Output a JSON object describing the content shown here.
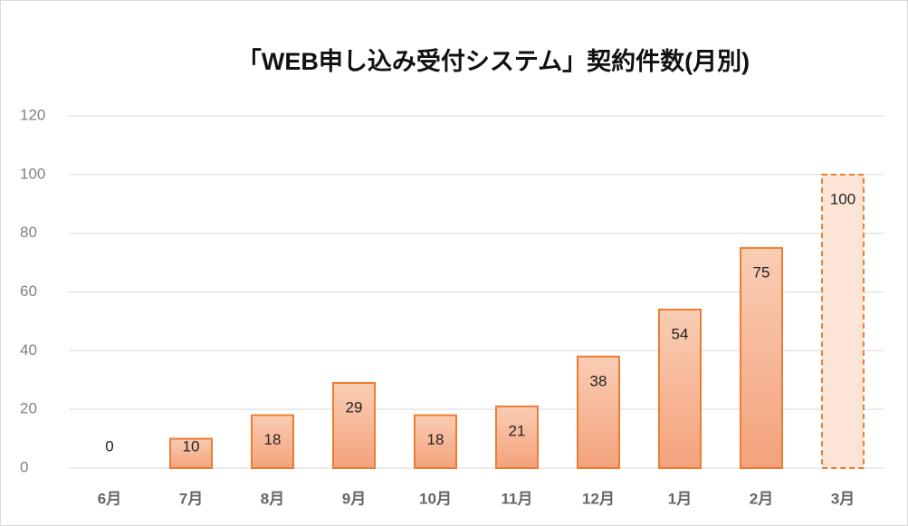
{
  "chart_data": {
    "type": "bar",
    "title": "「WEB申し込み受付システム」契約件数(月別)",
    "categories": [
      "6月",
      "7月",
      "8月",
      "9月",
      "10月",
      "11月",
      "12月",
      "1月",
      "2月",
      "3月"
    ],
    "values": [
      0,
      10,
      18,
      29,
      18,
      21,
      38,
      54,
      75,
      100
    ],
    "color": "#ed7d31",
    "dashed": [
      false,
      false,
      false,
      false,
      false,
      false,
      false,
      false,
      false,
      true
    ],
    "ylim": [
      0,
      120
    ],
    "yticks": [
      0,
      20,
      40,
      60,
      80,
      100,
      120
    ],
    "grid": true
  }
}
